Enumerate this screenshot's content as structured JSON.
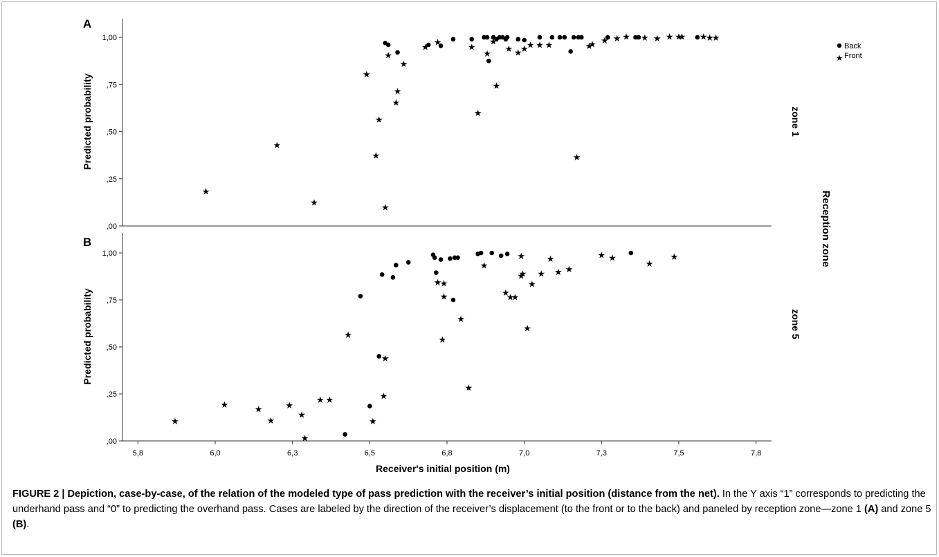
{
  "chart_data": {
    "type": "scatter",
    "xlabel": "Receiver's initial position (m)",
    "row_group_label": "Reception zone",
    "xlim": [
      5.75,
      7.85
    ],
    "x_ticks": [
      "5,8",
      "6,0",
      "6,3",
      "6,5",
      "6,8",
      "7,0",
      "7,3",
      "7,5",
      "7,8"
    ],
    "x_tick_values": [
      5.8,
      6.05,
      6.3,
      6.55,
      6.8,
      7.05,
      7.3,
      7.55,
      7.8
    ],
    "legend": {
      "position": "top-right",
      "entries": [
        {
          "label": "Back",
          "marker": "dot"
        },
        {
          "label": "Front",
          "marker": "star"
        }
      ]
    },
    "marker_color": "#000000",
    "axis_color": "#333333",
    "panels": [
      {
        "letter": "A",
        "zone_label": "zone 1",
        "ylabel": "Predicted probability",
        "ylim": [
          0,
          1.05
        ],
        "y_ticks": [
          ",00",
          ",25",
          ",50",
          ",75",
          "1,00"
        ],
        "y_tick_values": [
          0,
          0.25,
          0.5,
          0.75,
          1.0
        ],
        "series": [
          {
            "name": "Back",
            "marker": "dot",
            "points": [
              [
                6.6,
                0.97
              ],
              [
                6.61,
                0.96
              ],
              [
                6.64,
                0.92
              ],
              [
                6.74,
                0.96
              ],
              [
                6.78,
                0.955
              ],
              [
                6.82,
                0.99
              ],
              [
                6.88,
                0.99
              ],
              [
                6.92,
                1.0
              ],
              [
                6.93,
                1.0
              ],
              [
                6.95,
                1.0
              ],
              [
                6.97,
                1.0
              ],
              [
                6.98,
                1.0
              ],
              [
                6.995,
                1.0
              ],
              [
                6.96,
                0.99
              ],
              [
                6.99,
                0.99
              ],
              [
                6.935,
                0.875
              ],
              [
                7.03,
                0.99
              ],
              [
                7.05,
                0.985
              ],
              [
                7.1,
                1.0
              ],
              [
                7.14,
                1.0
              ],
              [
                7.165,
                1.0
              ],
              [
                7.18,
                1.0
              ],
              [
                7.21,
                1.0
              ],
              [
                7.225,
                1.0
              ],
              [
                7.235,
                1.0
              ],
              [
                7.2,
                0.925
              ],
              [
                7.32,
                1.0
              ],
              [
                7.41,
                1.0
              ],
              [
                7.42,
                1.0
              ],
              [
                7.61,
                1.0
              ]
            ]
          },
          {
            "name": "Front",
            "marker": "star",
            "points": [
              [
                6.02,
                0.18
              ],
              [
                6.25,
                0.425
              ],
              [
                6.37,
                0.12
              ],
              [
                6.54,
                0.8
              ],
              [
                6.57,
                0.37
              ],
              [
                6.58,
                0.56
              ],
              [
                6.6,
                0.095
              ],
              [
                6.61,
                0.9
              ],
              [
                6.64,
                0.71
              ],
              [
                6.635,
                0.65
              ],
              [
                6.66,
                0.855
              ],
              [
                6.73,
                0.945
              ],
              [
                6.77,
                0.97
              ],
              [
                6.88,
                0.945
              ],
              [
                6.9,
                0.595
              ],
              [
                6.93,
                0.91
              ],
              [
                6.95,
                0.975
              ],
              [
                6.96,
                0.74
              ],
              [
                7.0,
                0.935
              ],
              [
                7.03,
                0.915
              ],
              [
                7.05,
                0.935
              ],
              [
                7.07,
                0.955
              ],
              [
                7.1,
                0.955
              ],
              [
                7.13,
                0.955
              ],
              [
                7.22,
                0.36
              ],
              [
                7.26,
                0.95
              ],
              [
                7.27,
                0.96
              ],
              [
                7.31,
                0.98
              ],
              [
                7.35,
                0.99
              ],
              [
                7.38,
                1.0
              ],
              [
                7.44,
                0.995
              ],
              [
                7.48,
                0.99
              ],
              [
                7.52,
                1.0
              ],
              [
                7.55,
                1.0
              ],
              [
                7.56,
                1.0
              ],
              [
                7.63,
                1.0
              ],
              [
                7.65,
                0.995
              ],
              [
                7.67,
                0.995
              ]
            ]
          }
        ]
      },
      {
        "letter": "B",
        "zone_label": "zone 5",
        "ylabel": "Predicted probability",
        "ylim": [
          0,
          1.05
        ],
        "y_ticks": [
          ",00",
          ",25",
          ",50",
          ",75",
          "1,00"
        ],
        "y_tick_values": [
          0,
          0.25,
          0.5,
          0.75,
          1.0
        ],
        "series": [
          {
            "name": "Back",
            "marker": "dot",
            "points": [
              [
                6.47,
                0.035
              ],
              [
                6.52,
                0.77
              ],
              [
                6.55,
                0.185
              ],
              [
                6.58,
                0.45
              ],
              [
                6.59,
                0.885
              ],
              [
                6.625,
                0.87
              ],
              [
                6.635,
                0.935
              ],
              [
                6.675,
                0.95
              ],
              [
                6.755,
                0.99
              ],
              [
                6.76,
                0.975
              ],
              [
                6.78,
                0.965
              ],
              [
                6.765,
                0.895
              ],
              [
                6.81,
                0.97
              ],
              [
                6.825,
                0.975
              ],
              [
                6.835,
                0.975
              ],
              [
                6.82,
                0.75
              ],
              [
                6.9,
                0.995
              ],
              [
                6.91,
                1.0
              ],
              [
                6.945,
                1.0
              ],
              [
                6.975,
                0.985
              ],
              [
                6.995,
                0.995
              ],
              [
                7.395,
                1.0
              ]
            ]
          },
          {
            "name": "Front",
            "marker": "star",
            "points": [
              [
                5.92,
                0.1
              ],
              [
                6.08,
                0.19
              ],
              [
                6.19,
                0.165
              ],
              [
                6.23,
                0.105
              ],
              [
                6.29,
                0.185
              ],
              [
                6.33,
                0.135
              ],
              [
                6.34,
                0.01
              ],
              [
                6.39,
                0.215
              ],
              [
                6.42,
                0.215
              ],
              [
                6.48,
                0.56
              ],
              [
                6.56,
                0.1
              ],
              [
                6.595,
                0.235
              ],
              [
                6.6,
                0.435
              ],
              [
                6.77,
                0.84
              ],
              [
                6.79,
                0.835
              ],
              [
                6.785,
                0.535
              ],
              [
                6.79,
                0.765
              ],
              [
                6.845,
                0.645
              ],
              [
                6.87,
                0.28
              ],
              [
                6.92,
                0.93
              ],
              [
                6.99,
                0.785
              ],
              [
                7.005,
                0.76
              ],
              [
                7.02,
                0.76
              ],
              [
                7.04,
                0.98
              ],
              [
                7.045,
                0.885
              ],
              [
                7.04,
                0.875
              ],
              [
                7.06,
                0.595
              ],
              [
                7.075,
                0.83
              ],
              [
                7.105,
                0.885
              ],
              [
                7.135,
                0.965
              ],
              [
                7.16,
                0.895
              ],
              [
                7.195,
                0.91
              ],
              [
                7.3,
                0.985
              ],
              [
                7.335,
                0.97
              ],
              [
                7.455,
                0.94
              ],
              [
                7.535,
                0.975
              ]
            ]
          }
        ]
      }
    ]
  },
  "caption": {
    "label": "FIGURE 2 | Depiction, case-by-case, of the relation of the modeled type of pass prediction with the receiver’s initial position (distance from the net).",
    "text_1": " In the Y axis “1” corresponds to predicting the underhand pass and “0” to predicting the overhand pass. Cases are labeled by the direction of the receiver’s displacement (to the front or to the back) and paneled by reception zone—zone 1 ",
    "ref_a": "(A)",
    "text_2": " and zone 5 ",
    "ref_b": "(B)",
    "text_3": "."
  }
}
